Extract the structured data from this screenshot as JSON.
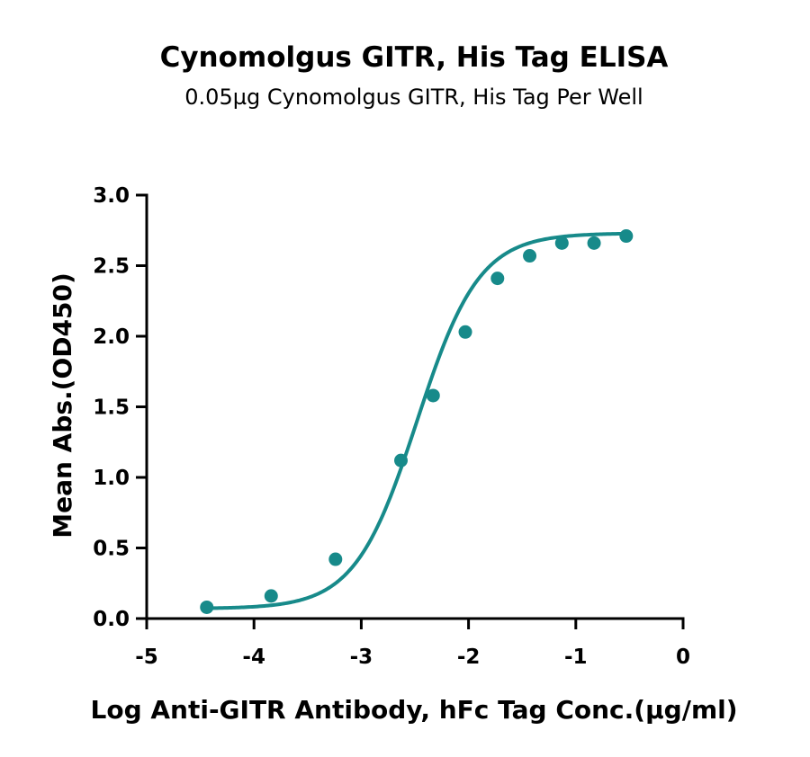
{
  "chart_data": {
    "type": "scatter",
    "title": "Cynomolgus GITR, His Tag ELISA",
    "subtitle": "0.05µg Cynomolgus GITR, His Tag Per Well",
    "xlabel": "Log Anti-GITR Antibody, hFc Tag Conc.(µg/ml)",
    "ylabel": "Mean Abs.(OD450)",
    "xlim": [
      -5,
      0
    ],
    "ylim": [
      0.0,
      3.0
    ],
    "xticks": [
      -5,
      -4,
      -3,
      -2,
      -1,
      0
    ],
    "xtick_labels": [
      "-5",
      "-4",
      "-3",
      "-2",
      "-1",
      "0"
    ],
    "yticks": [
      0.0,
      0.5,
      1.0,
      1.5,
      2.0,
      2.5,
      3.0
    ],
    "ytick_labels": [
      "0.0",
      "0.5",
      "1.0",
      "1.5",
      "2.0",
      "2.5",
      "3.0"
    ],
    "grid": false,
    "color": "#178a8a",
    "series": [
      {
        "x": [
          -4.44,
          -3.84,
          -3.24,
          -2.63,
          -2.33,
          -2.03,
          -1.73,
          -1.43,
          -1.13,
          -0.83,
          -0.53
        ],
        "y": [
          0.08,
          0.16,
          0.42,
          1.12,
          1.58,
          2.03,
          2.41,
          2.57,
          2.66,
          2.66,
          2.71
        ]
      }
    ],
    "fit_curve": {
      "type": "4PL",
      "bottom": 0.07,
      "top": 2.73,
      "log_ec50": -2.48,
      "hill_slope": 1.5,
      "x_range": [
        -4.44,
        -0.53
      ]
    }
  }
}
